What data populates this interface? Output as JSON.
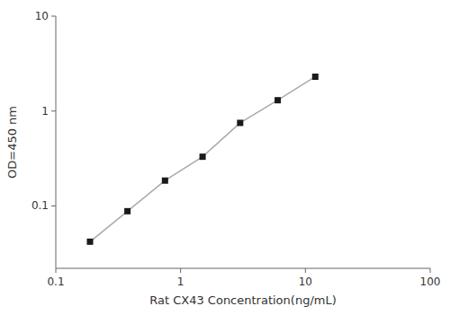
{
  "chart_data": {
    "type": "line",
    "x": [
      0.188,
      0.375,
      0.75,
      1.5,
      3.0,
      6.0,
      12.0
    ],
    "values": [
      0.042,
      0.088,
      0.185,
      0.33,
      0.75,
      1.3,
      2.3
    ],
    "xlabel": "Rat CX43 Concentration(ng/mL)",
    "ylabel": "OD=450 nm",
    "xlim": [
      0.1,
      100
    ],
    "ylim": [
      0.022,
      10
    ],
    "xticks": [
      0.1,
      1,
      10,
      100
    ],
    "yticks": [
      0.1,
      1,
      10
    ],
    "log": true,
    "grid": false,
    "color": "#aaaaaa",
    "colors": [
      "#1a1a1a",
      "#1a1a1a",
      "#1a1a1a",
      "#1a1a1a",
      "#1a1a1a",
      "#1a1a1a",
      "#1a1a1a"
    ],
    "marker": "square",
    "line_style": "solid"
  }
}
